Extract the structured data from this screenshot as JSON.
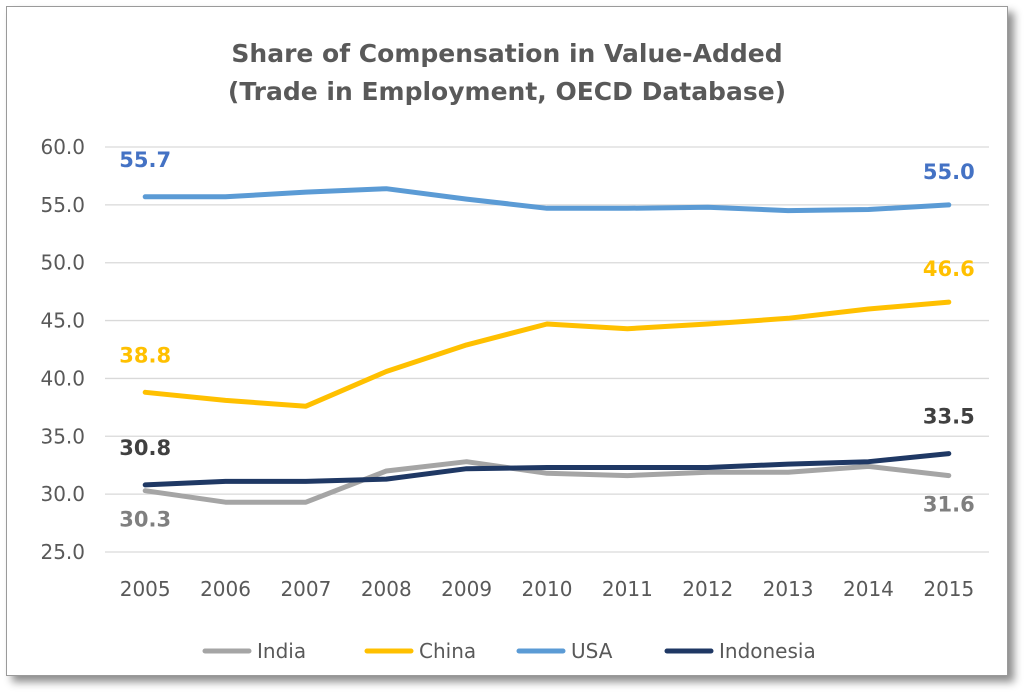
{
  "chart_data": {
    "type": "line",
    "title": "Share of Compensation in Value-Added",
    "subtitle": "(Trade in Employment, OECD Database)",
    "x": [
      "2005",
      "2006",
      "2007",
      "2008",
      "2009",
      "2010",
      "2011",
      "2012",
      "2013",
      "2014",
      "2015"
    ],
    "y_ticks": [
      "60.0",
      "55.0",
      "50.0",
      "45.0",
      "40.0",
      "35.0",
      "30.0",
      "25.0"
    ],
    "ylim": [
      25,
      60
    ],
    "grid": true,
    "legend_position": "bottom",
    "series": [
      {
        "name": "India",
        "color": "#a5a5a5",
        "values": [
          30.3,
          29.3,
          29.3,
          32.0,
          32.8,
          31.8,
          31.6,
          31.9,
          31.9,
          32.4,
          31.6
        ],
        "labels": [
          {
            "index": 0,
            "text": "30.3",
            "color": "#7f7f7f"
          },
          {
            "index": 10,
            "text": "31.6",
            "color": "#7f7f7f"
          }
        ]
      },
      {
        "name": "China",
        "color": "#ffc000",
        "values": [
          38.8,
          38.1,
          37.6,
          40.6,
          42.9,
          44.7,
          44.3,
          44.7,
          45.2,
          46.0,
          46.6
        ],
        "labels": [
          {
            "index": 0,
            "text": "38.8",
            "color": "#ffc000"
          },
          {
            "index": 10,
            "text": "46.6",
            "color": "#ffc000"
          }
        ]
      },
      {
        "name": "USA",
        "color": "#5b9bd5",
        "values": [
          55.7,
          55.7,
          56.1,
          56.4,
          55.5,
          54.7,
          54.7,
          54.8,
          54.5,
          54.6,
          55.0
        ],
        "labels": [
          {
            "index": 0,
            "text": "55.7",
            "color": "#4472c4"
          },
          {
            "index": 10,
            "text": "55.0",
            "color": "#4472c4"
          }
        ]
      },
      {
        "name": "Indonesia",
        "color": "#1f3864",
        "values": [
          30.8,
          31.1,
          31.1,
          31.3,
          32.2,
          32.3,
          32.3,
          32.3,
          32.6,
          32.8,
          33.5
        ],
        "labels": [
          {
            "index": 0,
            "text": "30.8",
            "color": "#404040"
          },
          {
            "index": 10,
            "text": "33.5",
            "color": "#404040"
          }
        ]
      }
    ]
  }
}
